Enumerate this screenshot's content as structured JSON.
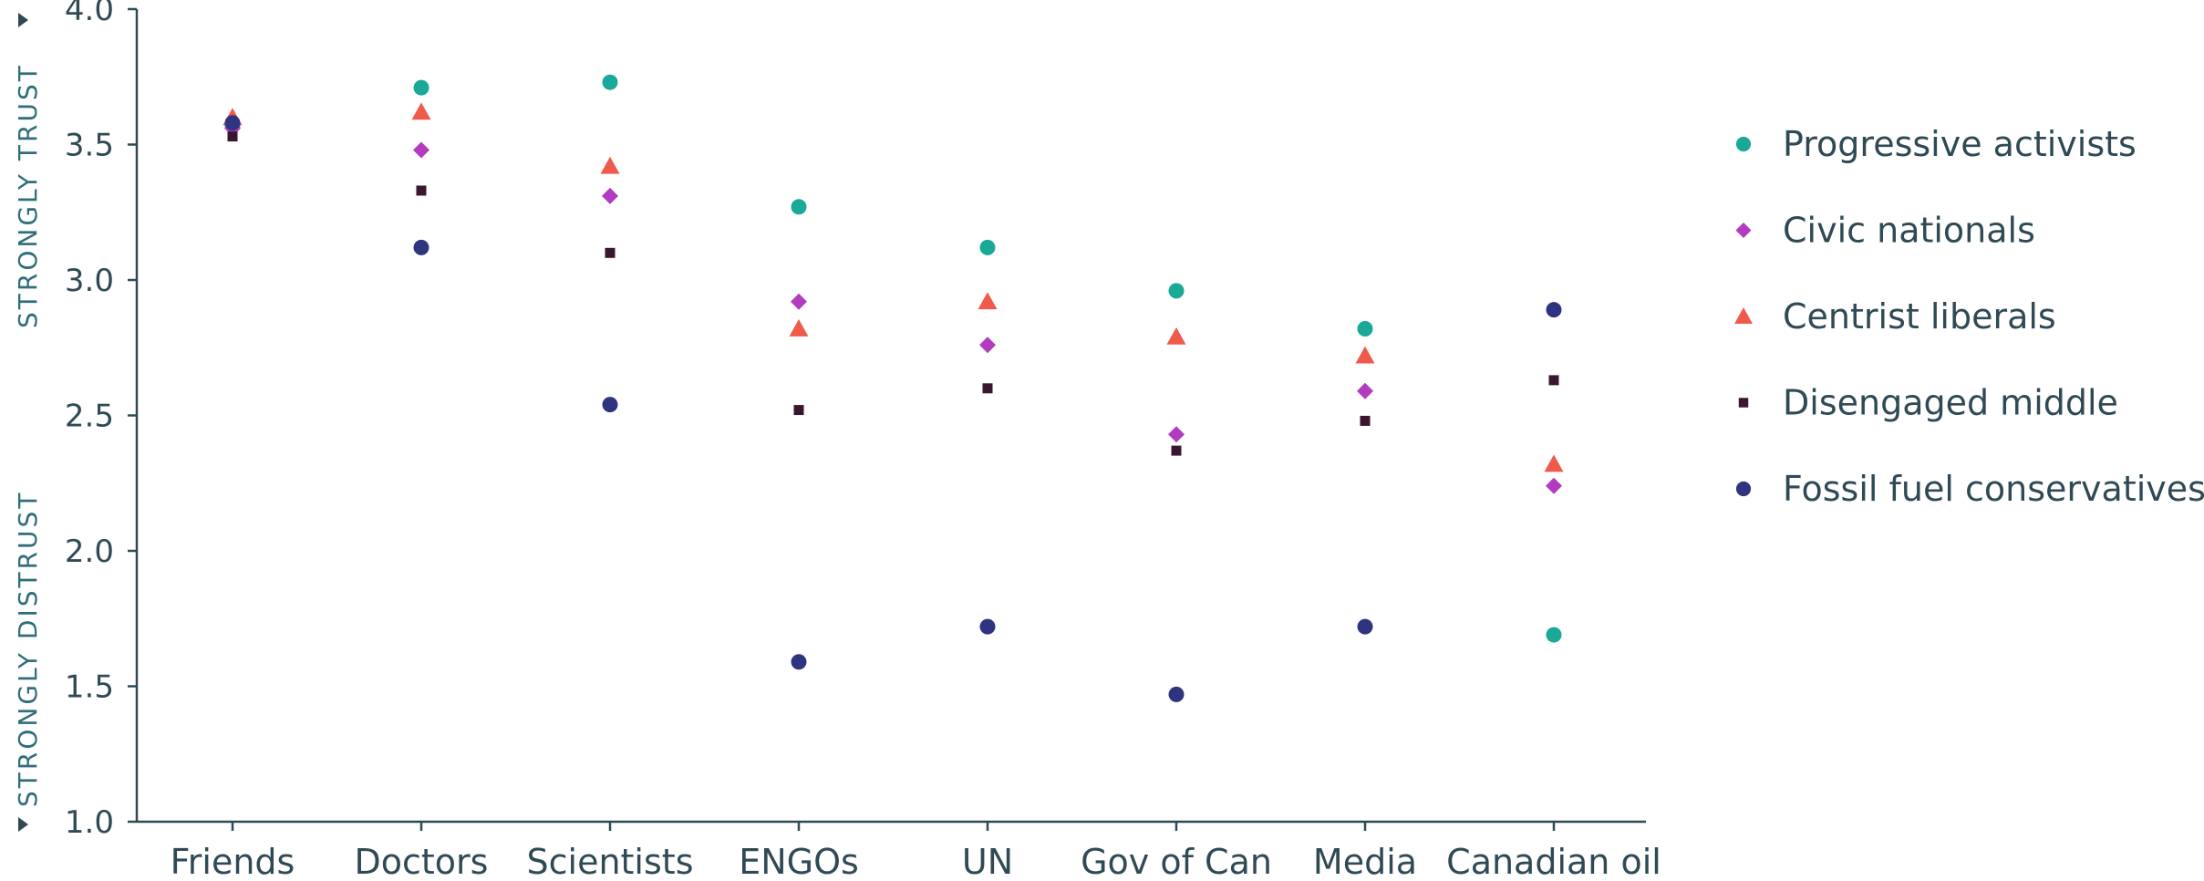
{
  "chart_data": {
    "type": "scatter",
    "categories": [
      "Friends",
      "Doctors",
      "Scientists",
      "ENGOs",
      "UN",
      "Gov of Can",
      "Media",
      "Canadian oil"
    ],
    "ylim": [
      1.0,
      4.0
    ],
    "yticks": [
      "1.0",
      "1.5",
      "2.0",
      "2.5",
      "3.0",
      "3.5",
      "4.0"
    ],
    "y_side_labels": {
      "top": "STRONGLY TRUST",
      "bottom": "STRONGLY DISTRUST"
    },
    "grid": false,
    "legend_position": "right",
    "series": [
      {
        "name": "Progressive activists",
        "marker": "circle",
        "color": "#1aa897",
        "values": [
          3.57,
          3.71,
          3.73,
          3.27,
          3.12,
          2.96,
          2.82,
          1.69
        ]
      },
      {
        "name": "Civic nationals",
        "marker": "diamond",
        "color": "#b23bbf",
        "values": [
          3.56,
          3.48,
          3.31,
          2.92,
          2.76,
          2.43,
          2.59,
          2.24
        ]
      },
      {
        "name": "Centrist liberals",
        "marker": "triangle",
        "color": "#ef5a4a",
        "values": [
          3.6,
          3.62,
          3.42,
          2.82,
          2.92,
          2.79,
          2.72,
          2.32
        ]
      },
      {
        "name": "Disengaged middle",
        "marker": "square",
        "color": "#3a1730",
        "values": [
          3.53,
          3.33,
          3.1,
          2.52,
          2.6,
          2.37,
          2.48,
          2.63
        ]
      },
      {
        "name": "Fossil fuel conservatives",
        "marker": "circle",
        "color": "#2e3480",
        "values": [
          3.58,
          3.12,
          2.54,
          1.59,
          1.72,
          1.47,
          1.72,
          2.89
        ]
      }
    ]
  }
}
